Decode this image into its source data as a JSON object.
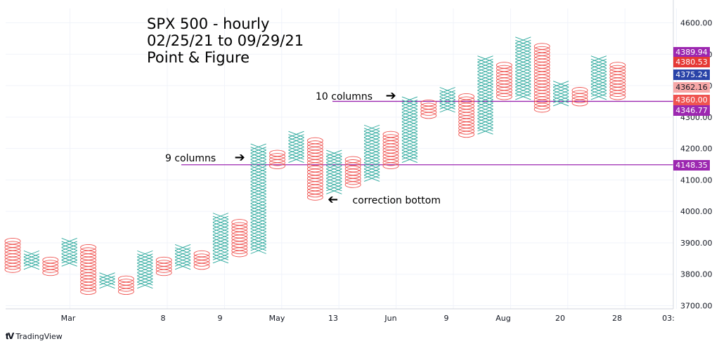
{
  "title_lines": [
    "SPX 500 - hourly",
    "02/25/21 to 09/29/21",
    "Point & Figure"
  ],
  "annotations": {
    "ten_columns": "10 columns",
    "nine_columns": "9 columns",
    "correction_bottom": "correction bottom"
  },
  "branding": {
    "logo_icon": "tradingview-logo-icon",
    "name": "TradingView"
  },
  "colors": {
    "x_color": "#26a69a",
    "o_color": "#ef5350",
    "level_line": "#9c27b0",
    "grid": "#f0f3fa",
    "axis_text": "#131722"
  },
  "chart_data": {
    "type": "point_and_figure",
    "title": "SPX 500 - hourly 02/25/21 to 09/29/21 Point & Figure",
    "box_size": 10,
    "ylim": [
      3680,
      4660
    ],
    "y_ticks": [
      3700,
      3800,
      3900,
      4000,
      4100,
      4200,
      4300,
      4400,
      4500,
      4600
    ],
    "y_tick_labels": [
      "3700.00",
      "3800.00",
      "3900.00",
      "4000.00",
      "4100.00",
      "4200.00",
      "4300.00",
      "4400.00",
      "4500.00",
      "4600.00"
    ],
    "x_tick_labels": [
      {
        "label": "Mar",
        "col": 11
      },
      {
        "label": "8",
        "col": 28
      },
      {
        "label": "9",
        "col": 38
      },
      {
        "label": "May",
        "col": 48
      },
      {
        "label": "13",
        "col": 58
      },
      {
        "label": "Jun",
        "col": 68
      },
      {
        "label": "9",
        "col": 78
      },
      {
        "label": "Aug",
        "col": 88
      },
      {
        "label": "20",
        "col": 98
      },
      {
        "label": "28",
        "col": 108
      },
      {
        "label": "03:",
        "col": 117
      }
    ],
    "columns": [
      {
        "col": 1,
        "type": "O",
        "high": 3905,
        "low": 3815
      },
      {
        "col": 2,
        "type": "X",
        "high": 3865,
        "low": 3825
      },
      {
        "col": 3,
        "type": "O",
        "high": 3845,
        "low": 3805
      },
      {
        "col": 4,
        "type": "X",
        "high": 3905,
        "low": 3835
      },
      {
        "col": 5,
        "type": "O",
        "high": 3885,
        "low": 3745
      },
      {
        "col": 6,
        "type": "X",
        "high": 3795,
        "low": 3765
      },
      {
        "col": 7,
        "type": "O",
        "high": 3785,
        "low": 3745
      },
      {
        "col": 8,
        "type": "X",
        "high": 3865,
        "low": 3765
      },
      {
        "col": 9,
        "type": "O",
        "high": 3845,
        "low": 3805
      },
      {
        "col": 10,
        "type": "X",
        "high": 3885,
        "low": 3825
      },
      {
        "col": 11,
        "type": "O",
        "high": 3865,
        "low": 3825
      },
      {
        "col": 12,
        "type": "X",
        "high": 3985,
        "low": 3845
      },
      {
        "col": 13,
        "type": "O",
        "high": 3965,
        "low": 3865
      },
      {
        "col": 14,
        "type": "X",
        "high": 4205,
        "low": 3875
      },
      {
        "col": 15,
        "type": "O",
        "high": 4185,
        "low": 4145
      },
      {
        "col": 16,
        "type": "X",
        "high": 4245,
        "low": 4165
      },
      {
        "col": 17,
        "type": "O",
        "high": 4225,
        "low": 4045
      },
      {
        "col": 18,
        "type": "X",
        "high": 4185,
        "low": 4065
      },
      {
        "col": 19,
        "type": "O",
        "high": 4165,
        "low": 4085
      },
      {
        "col": 20,
        "type": "X",
        "high": 4265,
        "low": 4105
      },
      {
        "col": 21,
        "type": "O",
        "high": 4245,
        "low": 4145
      },
      {
        "col": 22,
        "type": "X",
        "high": 4355,
        "low": 4165
      },
      {
        "col": 23,
        "type": "O",
        "high": 4345,
        "low": 4305
      },
      {
        "col": 24,
        "type": "X",
        "high": 4385,
        "low": 4325
      },
      {
        "col": 25,
        "type": "O",
        "high": 4365,
        "low": 4245
      },
      {
        "col": 26,
        "type": "X",
        "high": 4485,
        "low": 4255
      },
      {
        "col": 27,
        "type": "O",
        "high": 4465,
        "low": 4365
      },
      {
        "col": 28,
        "type": "X",
        "high": 4545,
        "low": 4365
      },
      {
        "col": 29,
        "type": "O",
        "high": 4525,
        "low": 4325
      },
      {
        "col": 30,
        "type": "X",
        "high": 4405,
        "low": 4345
      },
      {
        "col": 31,
        "type": "O",
        "high": 4385,
        "low": 4345
      },
      {
        "col": 32,
        "type": "X",
        "high": 4485,
        "low": 4365
      },
      {
        "col": 33,
        "type": "O",
        "high": 4465,
        "low": 4365
      }
    ],
    "price_labels": [
      {
        "value": 4389.94,
        "text": "4389.94",
        "color": "#9c27b0"
      },
      {
        "value": 4380.53,
        "text": "4380.53",
        "color": "#e53935"
      },
      {
        "value": 4375.24,
        "text": "4375.24",
        "color": "#2943a8"
      },
      {
        "value": 4362.16,
        "text": "4362.16",
        "color": "#f7a7a7"
      },
      {
        "value": 4360.0,
        "text": "4360.00",
        "color": "#ef5350"
      },
      {
        "value": 4346.77,
        "text": "4346.77",
        "color": "#9c27b0"
      },
      {
        "value": 4148.35,
        "text": "4148.35",
        "color": "#9c27b0"
      }
    ],
    "horizontal_lines": [
      {
        "value": 4350,
        "from_col": 18,
        "label": "10 columns"
      },
      {
        "value": 4148.35,
        "from_col": 7,
        "label": "9 columns"
      }
    ],
    "grid": true
  }
}
